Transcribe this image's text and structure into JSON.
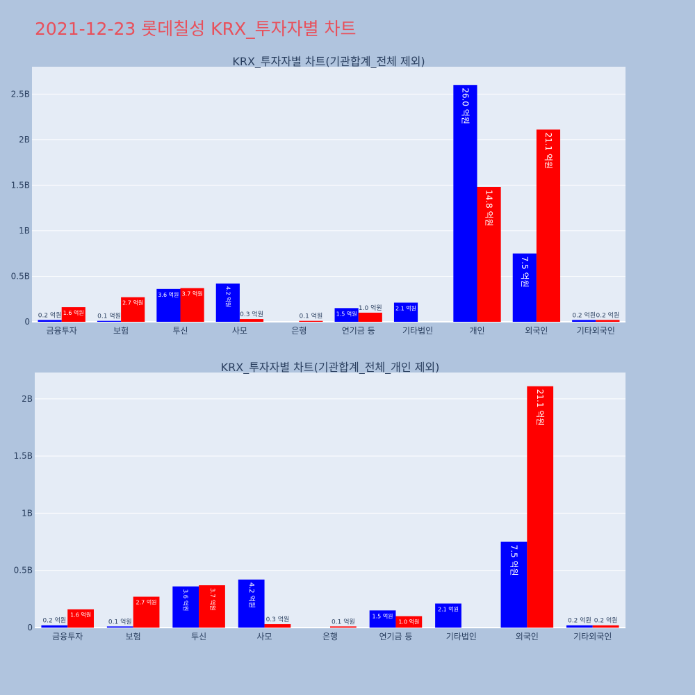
{
  "title": "2021-12-23 롯데칠성 KRX_투자자별 차트",
  "colors": {
    "series_a": "#0000ff",
    "series_b": "#ff0000",
    "plot_bg": "#e5ecf6",
    "page_bg": "#b0c4de",
    "title": "#e8505b"
  },
  "chart_data": [
    {
      "type": "bar",
      "title": "KRX_투자자별 차트(기관합계_전체 제외)",
      "categories": [
        "금융투자",
        "보험",
        "투신",
        "사모",
        "은행",
        "연기금 등",
        "기타법인",
        "개인",
        "외국인",
        "기타외국인"
      ],
      "series": [
        {
          "values": [
            0.02,
            0.01,
            0.36,
            0.42,
            0,
            0.15,
            0.21,
            2.6,
            0.75,
            0.02
          ],
          "labels": [
            "0.2 억원",
            "0.1 억원",
            "3.6 억원",
            "4.2 억원",
            "",
            "1.5 억원",
            "2.1 억원",
            "26.0 억원",
            "7.5 억원",
            "0.2 억원"
          ]
        },
        {
          "values": [
            0.16,
            0.27,
            0.37,
            0.03,
            0.01,
            0.1,
            0,
            1.48,
            2.11,
            0.02
          ],
          "labels": [
            "1.6 억원",
            "2.7 억원",
            "3.7 억원",
            "0.3 억원",
            "0.1 억원",
            "1.0 억원",
            "",
            "14.8 억원",
            "21.1 억원",
            "0.2 억원"
          ]
        }
      ],
      "yticks": [
        0,
        0.5,
        1,
        1.5,
        2,
        2.5
      ],
      "ytick_labels": [
        "0",
        "0.5B",
        "1B",
        "1.5B",
        "2B",
        "2.5B"
      ],
      "ylim": [
        0,
        2.8
      ]
    },
    {
      "type": "bar",
      "title": "KRX_투자자별 차트(기관합계_전체_개인 제외)",
      "categories": [
        "금융투자",
        "보험",
        "투신",
        "사모",
        "은행",
        "연기금 등",
        "기타법인",
        "외국인",
        "기타외국인"
      ],
      "series": [
        {
          "values": [
            0.02,
            0.01,
            0.36,
            0.42,
            0,
            0.15,
            0.21,
            0.75,
            0.02
          ],
          "labels": [
            "0.2 억원",
            "0.1 억원",
            "3.6 억원",
            "4.2 억원",
            "",
            "1.5 억원",
            "2.1 억원",
            "7.5 억원",
            "0.2 억원"
          ]
        },
        {
          "values": [
            0.16,
            0.27,
            0.37,
            0.03,
            0.01,
            0.1,
            0,
            2.11,
            0.02
          ],
          "labels": [
            "1.6 억원",
            "2.7 억원",
            "3.7 억원",
            "0.3 억원",
            "0.1 억원",
            "1.0 억원",
            "",
            "21.1 억원",
            "0.2 억원"
          ]
        }
      ],
      "yticks": [
        0,
        0.5,
        1,
        1.5,
        2
      ],
      "ytick_labels": [
        "0",
        "0.5B",
        "1B",
        "1.5B",
        "2B"
      ],
      "ylim": [
        0,
        2.23
      ]
    }
  ]
}
